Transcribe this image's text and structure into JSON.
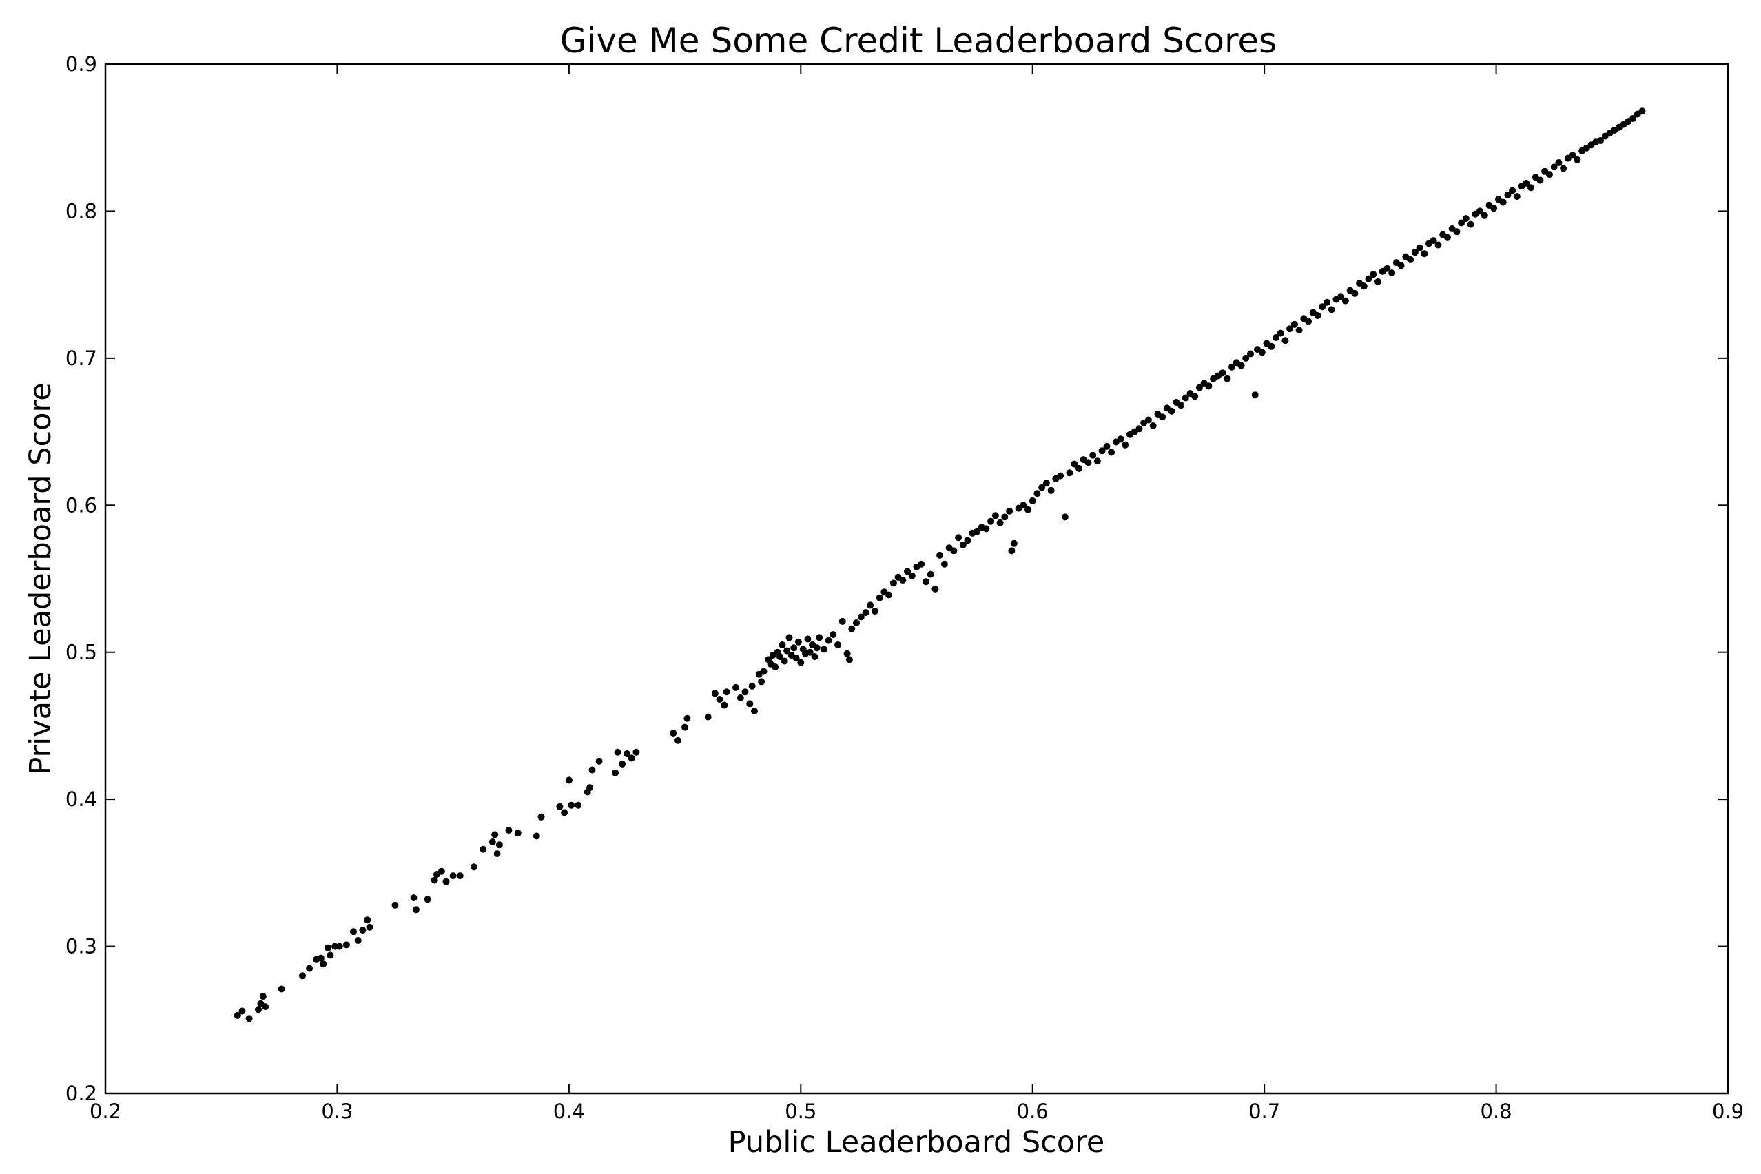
{
  "chart_data": {
    "type": "scatter",
    "title": "Give Me Some Credit Leaderboard Scores",
    "xlabel": "Public Leaderboard Score",
    "ylabel": "Private Leaderboard Score",
    "xlim": [
      0.2,
      0.9
    ],
    "ylim": [
      0.2,
      0.9
    ],
    "xticks": [
      "0.2",
      "0.3",
      "0.4",
      "0.5",
      "0.6",
      "0.7",
      "0.8",
      "0.9"
    ],
    "yticks": [
      "0.2",
      "0.3",
      "0.4",
      "0.5",
      "0.6",
      "0.7",
      "0.8",
      "0.9"
    ],
    "grid": false,
    "marker_color": "#000000",
    "points": [
      [
        0.257,
        0.253
      ],
      [
        0.259,
        0.256
      ],
      [
        0.262,
        0.251
      ],
      [
        0.266,
        0.257
      ],
      [
        0.267,
        0.261
      ],
      [
        0.268,
        0.266
      ],
      [
        0.269,
        0.259
      ],
      [
        0.276,
        0.271
      ],
      [
        0.285,
        0.28
      ],
      [
        0.288,
        0.285
      ],
      [
        0.291,
        0.291
      ],
      [
        0.293,
        0.292
      ],
      [
        0.294,
        0.288
      ],
      [
        0.296,
        0.299
      ],
      [
        0.297,
        0.294
      ],
      [
        0.299,
        0.3
      ],
      [
        0.301,
        0.3
      ],
      [
        0.304,
        0.301
      ],
      [
        0.307,
        0.31
      ],
      [
        0.309,
        0.304
      ],
      [
        0.311,
        0.311
      ],
      [
        0.313,
        0.318
      ],
      [
        0.314,
        0.313
      ],
      [
        0.325,
        0.328
      ],
      [
        0.333,
        0.333
      ],
      [
        0.334,
        0.325
      ],
      [
        0.339,
        0.332
      ],
      [
        0.342,
        0.345
      ],
      [
        0.343,
        0.349
      ],
      [
        0.345,
        0.351
      ],
      [
        0.347,
        0.344
      ],
      [
        0.35,
        0.348
      ],
      [
        0.353,
        0.348
      ],
      [
        0.359,
        0.354
      ],
      [
        0.363,
        0.366
      ],
      [
        0.367,
        0.371
      ],
      [
        0.368,
        0.376
      ],
      [
        0.369,
        0.363
      ],
      [
        0.37,
        0.369
      ],
      [
        0.374,
        0.379
      ],
      [
        0.378,
        0.377
      ],
      [
        0.386,
        0.375
      ],
      [
        0.388,
        0.388
      ],
      [
        0.396,
        0.395
      ],
      [
        0.398,
        0.391
      ],
      [
        0.4,
        0.413
      ],
      [
        0.401,
        0.396
      ],
      [
        0.404,
        0.396
      ],
      [
        0.408,
        0.405
      ],
      [
        0.409,
        0.408
      ],
      [
        0.41,
        0.42
      ],
      [
        0.413,
        0.426
      ],
      [
        0.42,
        0.418
      ],
      [
        0.421,
        0.432
      ],
      [
        0.423,
        0.424
      ],
      [
        0.425,
        0.431
      ],
      [
        0.427,
        0.428
      ],
      [
        0.429,
        0.432
      ],
      [
        0.445,
        0.445
      ],
      [
        0.447,
        0.44
      ],
      [
        0.45,
        0.449
      ],
      [
        0.451,
        0.455
      ],
      [
        0.46,
        0.456
      ],
      [
        0.463,
        0.472
      ],
      [
        0.465,
        0.468
      ],
      [
        0.467,
        0.464
      ],
      [
        0.468,
        0.473
      ],
      [
        0.472,
        0.476
      ],
      [
        0.474,
        0.469
      ],
      [
        0.476,
        0.473
      ],
      [
        0.478,
        0.465
      ],
      [
        0.479,
        0.477
      ],
      [
        0.48,
        0.46
      ],
      [
        0.482,
        0.485
      ],
      [
        0.483,
        0.48
      ],
      [
        0.484,
        0.487
      ],
      [
        0.486,
        0.495
      ],
      [
        0.487,
        0.492
      ],
      [
        0.488,
        0.498
      ],
      [
        0.489,
        0.49
      ],
      [
        0.49,
        0.5
      ],
      [
        0.491,
        0.497
      ],
      [
        0.492,
        0.505
      ],
      [
        0.493,
        0.494
      ],
      [
        0.494,
        0.501
      ],
      [
        0.495,
        0.51
      ],
      [
        0.496,
        0.498
      ],
      [
        0.497,
        0.503
      ],
      [
        0.498,
        0.496
      ],
      [
        0.499,
        0.507
      ],
      [
        0.5,
        0.493
      ],
      [
        0.501,
        0.502
      ],
      [
        0.502,
        0.499
      ],
      [
        0.503,
        0.509
      ],
      [
        0.504,
        0.5
      ],
      [
        0.505,
        0.505
      ],
      [
        0.506,
        0.497
      ],
      [
        0.507,
        0.503
      ],
      [
        0.508,
        0.51
      ],
      [
        0.51,
        0.502
      ],
      [
        0.512,
        0.508
      ],
      [
        0.514,
        0.512
      ],
      [
        0.516,
        0.505
      ],
      [
        0.518,
        0.521
      ],
      [
        0.52,
        0.499
      ],
      [
        0.521,
        0.495
      ],
      [
        0.522,
        0.516
      ],
      [
        0.524,
        0.52
      ],
      [
        0.526,
        0.524
      ],
      [
        0.528,
        0.527
      ],
      [
        0.53,
        0.532
      ],
      [
        0.532,
        0.528
      ],
      [
        0.534,
        0.537
      ],
      [
        0.536,
        0.541
      ],
      [
        0.538,
        0.539
      ],
      [
        0.54,
        0.547
      ],
      [
        0.542,
        0.551
      ],
      [
        0.544,
        0.549
      ],
      [
        0.546,
        0.555
      ],
      [
        0.548,
        0.552
      ],
      [
        0.55,
        0.558
      ],
      [
        0.552,
        0.56
      ],
      [
        0.554,
        0.548
      ],
      [
        0.556,
        0.553
      ],
      [
        0.558,
        0.543
      ],
      [
        0.56,
        0.566
      ],
      [
        0.562,
        0.56
      ],
      [
        0.564,
        0.571
      ],
      [
        0.566,
        0.569
      ],
      [
        0.568,
        0.578
      ],
      [
        0.57,
        0.573
      ],
      [
        0.572,
        0.576
      ],
      [
        0.574,
        0.581
      ],
      [
        0.576,
        0.582
      ],
      [
        0.578,
        0.585
      ],
      [
        0.58,
        0.584
      ],
      [
        0.582,
        0.589
      ],
      [
        0.584,
        0.593
      ],
      [
        0.586,
        0.588
      ],
      [
        0.588,
        0.592
      ],
      [
        0.59,
        0.596
      ],
      [
        0.591,
        0.569
      ],
      [
        0.592,
        0.574
      ],
      [
        0.594,
        0.598
      ],
      [
        0.596,
        0.6
      ],
      [
        0.598,
        0.597
      ],
      [
        0.6,
        0.603
      ],
      [
        0.602,
        0.608
      ],
      [
        0.604,
        0.612
      ],
      [
        0.606,
        0.615
      ],
      [
        0.608,
        0.61
      ],
      [
        0.61,
        0.618
      ],
      [
        0.612,
        0.62
      ],
      [
        0.614,
        0.592
      ],
      [
        0.616,
        0.622
      ],
      [
        0.618,
        0.628
      ],
      [
        0.62,
        0.625
      ],
      [
        0.622,
        0.631
      ],
      [
        0.624,
        0.629
      ],
      [
        0.626,
        0.634
      ],
      [
        0.628,
        0.63
      ],
      [
        0.63,
        0.637
      ],
      [
        0.632,
        0.64
      ],
      [
        0.634,
        0.636
      ],
      [
        0.636,
        0.643
      ],
      [
        0.638,
        0.645
      ],
      [
        0.64,
        0.641
      ],
      [
        0.642,
        0.648
      ],
      [
        0.644,
        0.65
      ],
      [
        0.646,
        0.652
      ],
      [
        0.648,
        0.656
      ],
      [
        0.65,
        0.658
      ],
      [
        0.652,
        0.654
      ],
      [
        0.654,
        0.662
      ],
      [
        0.656,
        0.66
      ],
      [
        0.658,
        0.666
      ],
      [
        0.66,
        0.664
      ],
      [
        0.662,
        0.67
      ],
      [
        0.664,
        0.668
      ],
      [
        0.666,
        0.673
      ],
      [
        0.668,
        0.676
      ],
      [
        0.67,
        0.674
      ],
      [
        0.672,
        0.68
      ],
      [
        0.674,
        0.683
      ],
      [
        0.676,
        0.681
      ],
      [
        0.678,
        0.686
      ],
      [
        0.68,
        0.688
      ],
      [
        0.682,
        0.69
      ],
      [
        0.684,
        0.686
      ],
      [
        0.686,
        0.694
      ],
      [
        0.688,
        0.697
      ],
      [
        0.69,
        0.695
      ],
      [
        0.692,
        0.7
      ],
      [
        0.694,
        0.703
      ],
      [
        0.696,
        0.675
      ],
      [
        0.697,
        0.706
      ],
      [
        0.699,
        0.704
      ],
      [
        0.701,
        0.71
      ],
      [
        0.703,
        0.708
      ],
      [
        0.705,
        0.714
      ],
      [
        0.707,
        0.717
      ],
      [
        0.709,
        0.712
      ],
      [
        0.711,
        0.72
      ],
      [
        0.713,
        0.723
      ],
      [
        0.715,
        0.719
      ],
      [
        0.717,
        0.727
      ],
      [
        0.719,
        0.725
      ],
      [
        0.721,
        0.731
      ],
      [
        0.723,
        0.729
      ],
      [
        0.725,
        0.735
      ],
      [
        0.727,
        0.738
      ],
      [
        0.729,
        0.733
      ],
      [
        0.731,
        0.74
      ],
      [
        0.733,
        0.742
      ],
      [
        0.735,
        0.739
      ],
      [
        0.737,
        0.746
      ],
      [
        0.739,
        0.744
      ],
      [
        0.741,
        0.751
      ],
      [
        0.743,
        0.749
      ],
      [
        0.745,
        0.754
      ],
      [
        0.747,
        0.757
      ],
      [
        0.749,
        0.752
      ],
      [
        0.751,
        0.759
      ],
      [
        0.753,
        0.761
      ],
      [
        0.755,
        0.758
      ],
      [
        0.757,
        0.765
      ],
      [
        0.759,
        0.763
      ],
      [
        0.761,
        0.769
      ],
      [
        0.763,
        0.767
      ],
      [
        0.765,
        0.772
      ],
      [
        0.767,
        0.775
      ],
      [
        0.769,
        0.771
      ],
      [
        0.771,
        0.778
      ],
      [
        0.773,
        0.78
      ],
      [
        0.775,
        0.777
      ],
      [
        0.777,
        0.784
      ],
      [
        0.779,
        0.782
      ],
      [
        0.781,
        0.788
      ],
      [
        0.783,
        0.786
      ],
      [
        0.785,
        0.792
      ],
      [
        0.787,
        0.795
      ],
      [
        0.789,
        0.791
      ],
      [
        0.791,
        0.798
      ],
      [
        0.793,
        0.8
      ],
      [
        0.795,
        0.797
      ],
      [
        0.797,
        0.804
      ],
      [
        0.799,
        0.802
      ],
      [
        0.801,
        0.808
      ],
      [
        0.803,
        0.806
      ],
      [
        0.805,
        0.811
      ],
      [
        0.807,
        0.814
      ],
      [
        0.809,
        0.81
      ],
      [
        0.811,
        0.817
      ],
      [
        0.813,
        0.819
      ],
      [
        0.815,
        0.816
      ],
      [
        0.817,
        0.823
      ],
      [
        0.819,
        0.821
      ],
      [
        0.821,
        0.827
      ],
      [
        0.823,
        0.825
      ],
      [
        0.825,
        0.83
      ],
      [
        0.827,
        0.833
      ],
      [
        0.829,
        0.829
      ],
      [
        0.831,
        0.836
      ],
      [
        0.833,
        0.838
      ],
      [
        0.835,
        0.835
      ],
      [
        0.837,
        0.841
      ],
      [
        0.839,
        0.843
      ],
      [
        0.841,
        0.845
      ],
      [
        0.843,
        0.847
      ],
      [
        0.845,
        0.848
      ],
      [
        0.847,
        0.851
      ],
      [
        0.849,
        0.853
      ],
      [
        0.851,
        0.855
      ],
      [
        0.853,
        0.857
      ],
      [
        0.855,
        0.859
      ],
      [
        0.857,
        0.861
      ],
      [
        0.859,
        0.863
      ],
      [
        0.861,
        0.866
      ],
      [
        0.863,
        0.868
      ]
    ]
  }
}
